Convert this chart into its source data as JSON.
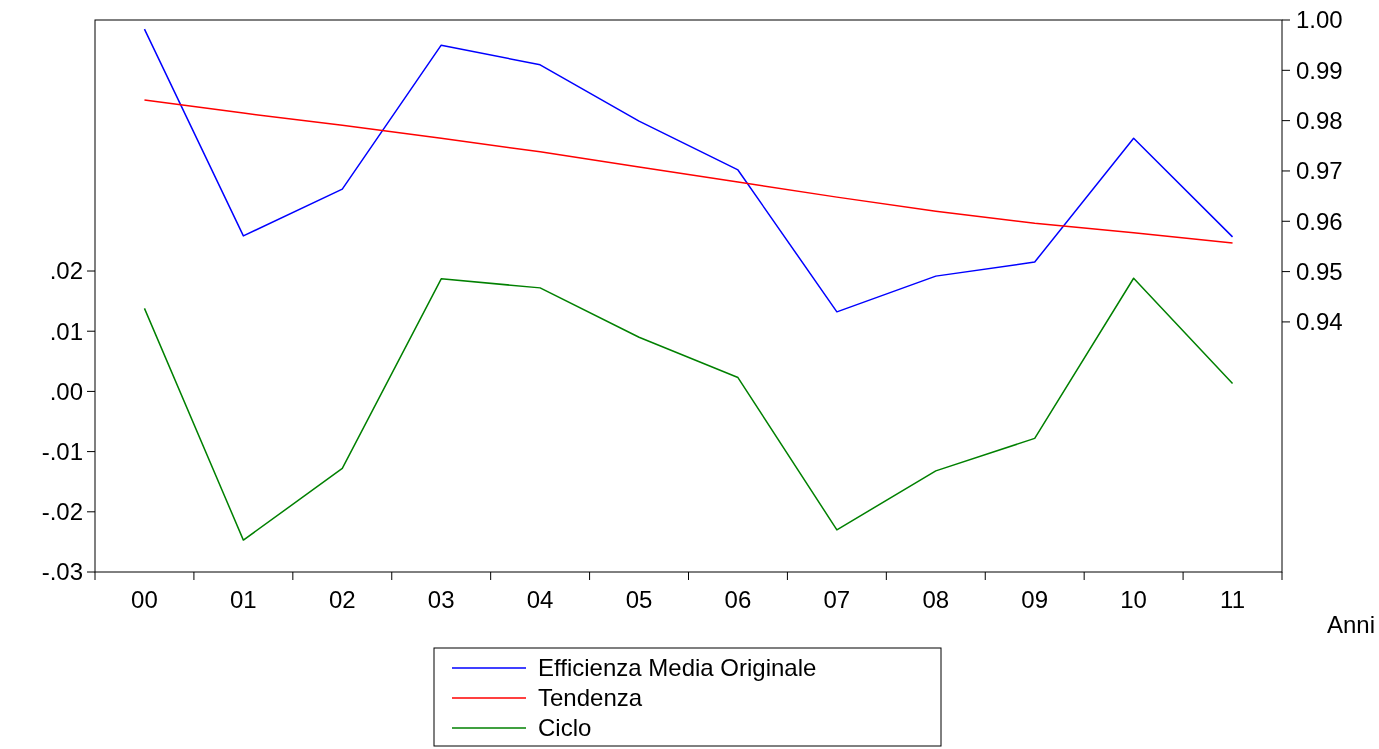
{
  "chart_data": {
    "type": "line",
    "xlabel": "Anni",
    "categories": [
      "00",
      "01",
      "02",
      "03",
      "04",
      "05",
      "06",
      "07",
      "08",
      "09",
      "10",
      "11"
    ],
    "series": [
      {
        "name": "Efficienza Media Originale",
        "color": "#0000ff",
        "axis": "y2",
        "values": [
          0.9982,
          0.9571,
          0.9664,
          0.995,
          0.9911,
          0.9799,
          0.9702,
          0.942,
          0.9491,
          0.9519,
          0.9765,
          0.9569
        ]
      },
      {
        "name": "Tendenza",
        "color": "#ff0000",
        "axis": "y2",
        "values": [
          0.9841,
          0.9815,
          0.9791,
          0.9765,
          0.9738,
          0.9708,
          0.9678,
          0.9648,
          0.962,
          0.9596,
          0.9577,
          0.9557
        ]
      },
      {
        "name": "Ciclo",
        "color": "#008000",
        "values": [
          0.0138,
          -0.0247,
          -0.0128,
          0.0187,
          0.0172,
          0.009,
          0.0023,
          -0.023,
          -0.0132,
          -0.0078,
          0.0188,
          0.0013
        ]
      }
    ],
    "ylim": [
      -0.03,
      0.0617
    ],
    "yticks": [
      {
        "value": -0.03,
        "label": "-.03"
      },
      {
        "value": -0.02,
        "label": "-.02"
      },
      {
        "value": -0.01,
        "label": "-.01"
      },
      {
        "value": 0,
        "label": ".00"
      },
      {
        "value": 0.01,
        "label": ".01"
      },
      {
        "value": 0.02,
        "label": ".02"
      }
    ],
    "y2lim": [
      0.8903,
      1.0
    ],
    "y2ticks": [
      {
        "value": 0.94,
        "label": "0.94"
      },
      {
        "value": 0.95,
        "label": "0.95"
      },
      {
        "value": 0.96,
        "label": "0.96"
      },
      {
        "value": 0.97,
        "label": "0.97"
      },
      {
        "value": 0.98,
        "label": "0.98"
      },
      {
        "value": 0.99,
        "label": "0.99"
      },
      {
        "value": 1.0,
        "label": "1.00"
      }
    ],
    "grid": false,
    "legend": "bottom",
    "marker": "none",
    "line_style": "solid"
  }
}
